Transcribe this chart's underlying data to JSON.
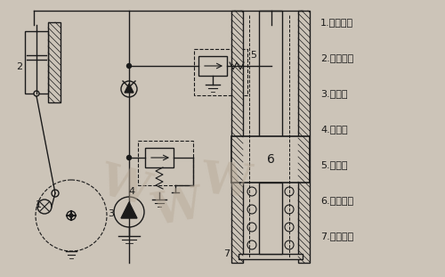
{
  "bg_color": "#ccc4b8",
  "line_color": "#1a1a1a",
  "legend_items": [
    "1.曲柄連桿",
    "2.輸入活塞",
    "3.補油泵",
    "4.溢流閥",
    "5.安全閥",
    "6.輸出活塞",
    "7.回程彈簧"
  ],
  "watermark_color": "#b8aa98"
}
